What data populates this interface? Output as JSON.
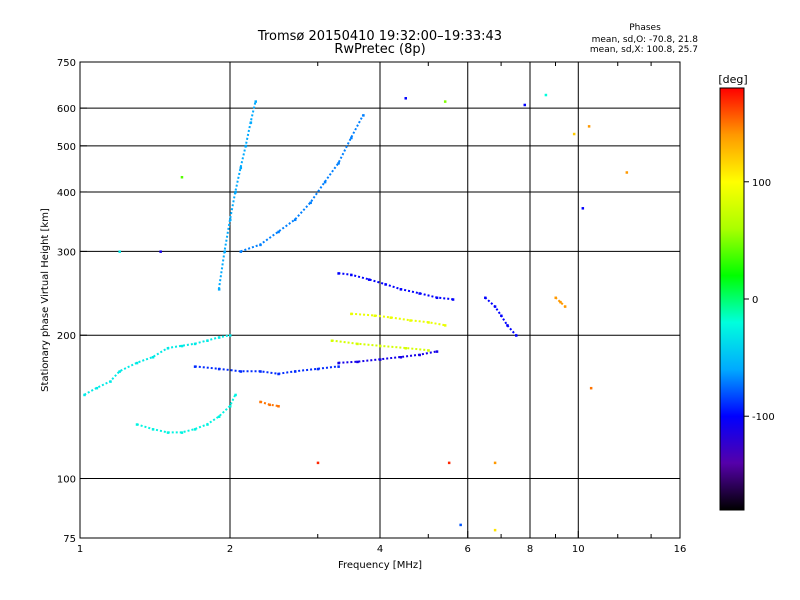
{
  "chart_data": {
    "type": "scatter",
    "title": "Tromsø 20150410 19:32:00–19:33:43",
    "subtitle": "RwPretec (8p)",
    "stats": {
      "heading": "Phases",
      "line_o": "mean, sd,O: -70.8, 21.8",
      "line_x": "mean, sd,X: 100.8, 25.7"
    },
    "xlabel": "Frequency [MHz]",
    "ylabel": "Stationary phase Virtual Height [km]",
    "x_scale": "log2",
    "y_scale": "log",
    "xlim": [
      1,
      16
    ],
    "ylim": [
      75,
      750
    ],
    "x_ticks": [
      {
        "value": 1,
        "label": "1"
      },
      {
        "value": 2,
        "label": "2"
      },
      {
        "value": 4,
        "label": "4"
      },
      {
        "value": 6,
        "label": "6"
      },
      {
        "value": 8,
        "label": "8"
      },
      {
        "value": 10,
        "label": "10"
      },
      {
        "value": 16,
        "label": "16"
      }
    ],
    "x_grid": [
      2,
      4,
      6,
      8,
      10
    ],
    "y_ticks": [
      {
        "value": 75,
        "label": "75"
      },
      {
        "value": 100,
        "label": "100"
      },
      {
        "value": 200,
        "label": "200"
      },
      {
        "value": 300,
        "label": "300"
      },
      {
        "value": 400,
        "label": "400"
      },
      {
        "value": 500,
        "label": "500"
      },
      {
        "value": 600,
        "label": "600"
      },
      {
        "value": 750,
        "label": "750"
      }
    ],
    "y_grid": [
      100,
      200,
      300,
      400,
      500,
      600
    ],
    "grid": true,
    "colorbar": {
      "label": "[deg]",
      "range": [
        -180,
        180
      ],
      "ticks": [
        {
          "value": 100,
          "label": "100"
        },
        {
          "value": 0,
          "label": "0"
        },
        {
          "value": -100,
          "label": "-100"
        }
      ],
      "colors": [
        "#000000",
        "#5500aa",
        "#0000ff",
        "#00aaff",
        "#00ffdd",
        "#00ff00",
        "#aaff00",
        "#ffff00",
        "#ff9900",
        "#ff0000"
      ]
    },
    "traces": [
      {
        "name": "",
        "phase": -30,
        "points": [
          [
            1.02,
            150
          ],
          [
            1.08,
            155
          ],
          [
            1.15,
            160
          ],
          [
            1.2,
            168
          ],
          [
            1.3,
            175
          ],
          [
            1.4,
            180
          ],
          [
            1.5,
            188
          ],
          [
            1.6,
            190
          ],
          [
            1.7,
            192
          ],
          [
            1.8,
            195
          ],
          [
            1.9,
            198
          ],
          [
            2.0,
            200
          ]
        ]
      },
      {
        "name": "",
        "phase": -25,
        "points": [
          [
            1.3,
            130
          ],
          [
            1.4,
            127
          ],
          [
            1.5,
            125
          ],
          [
            1.6,
            125
          ],
          [
            1.7,
            127
          ],
          [
            1.8,
            130
          ],
          [
            1.9,
            135
          ],
          [
            2.0,
            142
          ],
          [
            2.05,
            150
          ]
        ]
      },
      {
        "name": "",
        "phase": -90,
        "points": [
          [
            1.7,
            172
          ],
          [
            1.9,
            170
          ],
          [
            2.1,
            168
          ],
          [
            2.3,
            168
          ],
          [
            2.5,
            166
          ],
          [
            2.7,
            168
          ],
          [
            3.0,
            170
          ],
          [
            3.3,
            172
          ]
        ]
      },
      {
        "name": "",
        "phase": -110,
        "points": [
          [
            3.3,
            175
          ],
          [
            3.6,
            176
          ],
          [
            4.0,
            178
          ],
          [
            4.4,
            180
          ],
          [
            4.8,
            182
          ],
          [
            5.2,
            185
          ]
        ]
      },
      {
        "name": "",
        "phase": -100,
        "points": [
          [
            3.3,
            270
          ],
          [
            3.5,
            268
          ],
          [
            3.8,
            262
          ],
          [
            4.1,
            256
          ],
          [
            4.4,
            250
          ],
          [
            4.8,
            245
          ],
          [
            5.2,
            240
          ],
          [
            5.6,
            238
          ]
        ]
      },
      {
        "name": "",
        "phase": 90,
        "points": [
          [
            3.5,
            222
          ],
          [
            3.9,
            220
          ],
          [
            4.2,
            218
          ],
          [
            4.6,
            215
          ],
          [
            5.0,
            213
          ],
          [
            5.4,
            210
          ]
        ]
      },
      {
        "name": "",
        "phase": 80,
        "points": [
          [
            3.2,
            195
          ],
          [
            3.6,
            192
          ],
          [
            4.0,
            190
          ],
          [
            4.5,
            188
          ],
          [
            5.0,
            186
          ]
        ]
      },
      {
        "name": "",
        "phase": -70,
        "points": [
          [
            2.1,
            300
          ],
          [
            2.3,
            310
          ],
          [
            2.5,
            330
          ],
          [
            2.7,
            350
          ],
          [
            2.9,
            380
          ],
          [
            3.1,
            420
          ],
          [
            3.3,
            460
          ],
          [
            3.5,
            520
          ],
          [
            3.7,
            580
          ]
        ]
      },
      {
        "name": "",
        "phase": -60,
        "points": [
          [
            1.9,
            250
          ],
          [
            1.95,
            300
          ],
          [
            2.0,
            350
          ],
          [
            2.05,
            400
          ],
          [
            2.1,
            450
          ],
          [
            2.15,
            500
          ],
          [
            2.2,
            560
          ],
          [
            2.25,
            620
          ]
        ]
      },
      {
        "name": "",
        "phase": 150,
        "points": [
          [
            2.3,
            145
          ],
          [
            2.4,
            143
          ],
          [
            2.5,
            142
          ]
        ]
      },
      {
        "name": "",
        "phase": -100,
        "points": [
          [
            6.5,
            240
          ],
          [
            6.8,
            230
          ],
          [
            7.0,
            220
          ],
          [
            7.2,
            210
          ],
          [
            7.5,
            200
          ]
        ]
      },
      {
        "name": "",
        "phase": 140,
        "points": [
          [
            9.0,
            240
          ],
          [
            9.2,
            235
          ],
          [
            9.4,
            230
          ]
        ]
      }
    ],
    "scatter": [
      {
        "x": 1.2,
        "y": 300,
        "phase": -30
      },
      {
        "x": 1.45,
        "y": 300,
        "phase": -110
      },
      {
        "x": 1.6,
        "y": 430,
        "phase": 40
      },
      {
        "x": 3.0,
        "y": 108,
        "phase": 170
      },
      {
        "x": 5.5,
        "y": 108,
        "phase": 170
      },
      {
        "x": 6.8,
        "y": 108,
        "phase": 140
      },
      {
        "x": 5.8,
        "y": 80,
        "phase": -80
      },
      {
        "x": 6.8,
        "y": 78,
        "phase": 110
      },
      {
        "x": 8.6,
        "y": 640,
        "phase": -20
      },
      {
        "x": 10.5,
        "y": 550,
        "phase": 140
      },
      {
        "x": 12.5,
        "y": 440,
        "phase": 140
      },
      {
        "x": 10.2,
        "y": 370,
        "phase": -100
      },
      {
        "x": 10.6,
        "y": 155,
        "phase": 150
      },
      {
        "x": 4.5,
        "y": 630,
        "phase": -100
      },
      {
        "x": 5.4,
        "y": 620,
        "phase": 50
      },
      {
        "x": 7.8,
        "y": 610,
        "phase": -100
      },
      {
        "x": 9.8,
        "y": 530,
        "phase": 120
      }
    ]
  }
}
